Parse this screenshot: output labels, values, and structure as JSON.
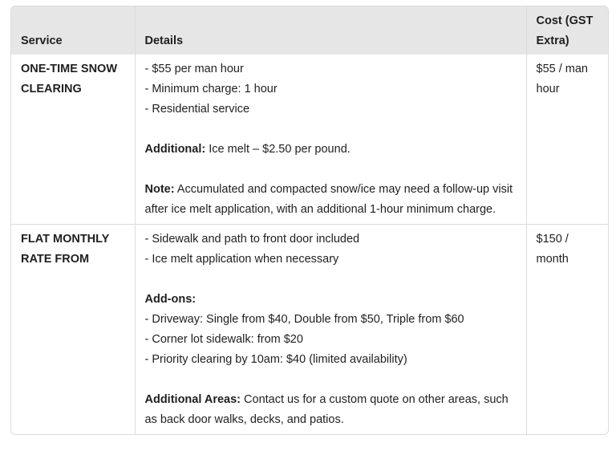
{
  "table": {
    "headers": [
      "Service",
      "Details",
      "Cost (GST Extra)"
    ],
    "rows": [
      {
        "service": "ONE-TIME SNOW CLEARING",
        "details": [
          {
            "text": "- $55 per man hour"
          },
          {
            "text": "- Minimum charge: 1 hour"
          },
          {
            "text": "- Residential service"
          },
          {
            "text": ""
          },
          {
            "label": "Additional:",
            "text": " Ice melt – $2.50 per pound."
          },
          {
            "text": ""
          },
          {
            "label": "Note:",
            "text": " Accumulated and compacted snow/ice may need a follow-up visit after ice melt application, with an additional 1-hour minimum charge."
          }
        ],
        "cost": "$55 / man hour"
      },
      {
        "service": "FLAT MONTHLY RATE FROM",
        "details": [
          {
            "text": "- Sidewalk and path to front door included"
          },
          {
            "text": "- Ice melt application when necessary"
          },
          {
            "text": ""
          },
          {
            "label": "Add-ons:",
            "text": ""
          },
          {
            "text": "- Driveway: Single from $40, Double from $50, Triple from $60"
          },
          {
            "text": "- Corner lot sidewalk: from $20"
          },
          {
            "text": "- Priority clearing by 10am: $40 (limited availability)"
          },
          {
            "text": ""
          },
          {
            "label": "Additional Areas:",
            "text": " Contact us for a custom quote on other areas, such as back door walks, decks, and patios."
          }
        ],
        "cost": "$150 / month"
      }
    ]
  }
}
